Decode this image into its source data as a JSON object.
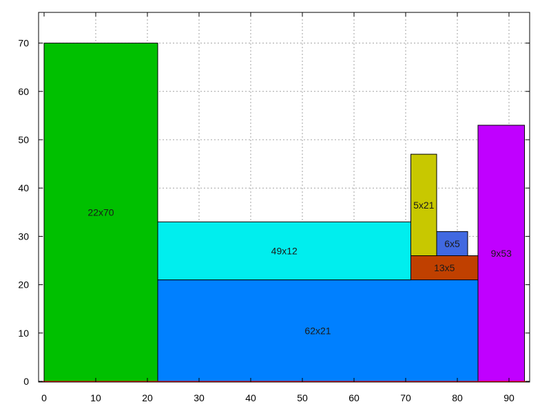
{
  "chart_data": {
    "type": "rectangle-packing",
    "title": "",
    "xlabel": "",
    "ylabel": "",
    "xlim": [
      0,
      94
    ],
    "ylim": [
      0,
      75
    ],
    "x_ticks": [
      0,
      10,
      20,
      30,
      40,
      50,
      60,
      70,
      80,
      90
    ],
    "y_ticks": [
      0,
      10,
      20,
      30,
      40,
      50,
      60,
      70
    ],
    "grid": true,
    "baseline_color": "#ff0000",
    "rects": [
      {
        "label": "22x70",
        "x": 0,
        "y": 0,
        "w": 22,
        "h": 70,
        "color": "#00c000"
      },
      {
        "label": "62x21",
        "x": 22,
        "y": 0,
        "w": 62,
        "h": 21,
        "color": "#0080ff"
      },
      {
        "label": "49x12",
        "x": 22,
        "y": 21,
        "w": 49,
        "h": 12,
        "color": "#00eeee"
      },
      {
        "label": "13x5",
        "x": 71,
        "y": 21,
        "w": 13,
        "h": 5,
        "color": "#c04000"
      },
      {
        "label": "5x21",
        "x": 71,
        "y": 26,
        "w": 5,
        "h": 21,
        "color": "#c8c800"
      },
      {
        "label": "6x5",
        "x": 76,
        "y": 26,
        "w": 6,
        "h": 5,
        "color": "#4169e1"
      },
      {
        "label": "9x53",
        "x": 84,
        "y": 0,
        "w": 9,
        "h": 53,
        "color": "#c000ff"
      }
    ]
  }
}
